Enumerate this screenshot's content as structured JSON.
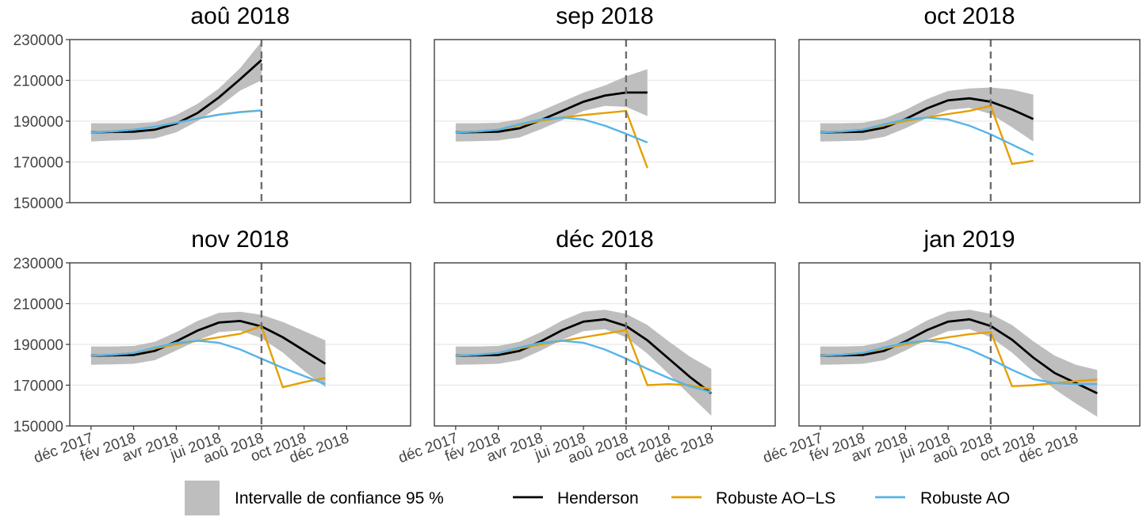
{
  "chart_data": {
    "type": "line",
    "legend_position": "bottom",
    "legend": [
      {
        "key": "ci",
        "label": "Intervalle de confiance 95 %",
        "color": "#bebebe"
      },
      {
        "key": "henderson",
        "label": "Henderson",
        "color": "#000000"
      },
      {
        "key": "ao_ls",
        "label": "Robuste AO−LS",
        "color": "#E69F00"
      },
      {
        "key": "ao",
        "label": "Robuste AO",
        "color": "#56B4E9"
      }
    ],
    "ylim": [
      150000,
      230000
    ],
    "y_ticks": [
      150000,
      170000,
      190000,
      210000,
      230000
    ],
    "y_tick_labels": [
      "150000",
      "170000",
      "190000",
      "210000",
      "230000"
    ],
    "x_ticks": [
      "2017-12",
      "2018-02",
      "2018-04",
      "2018-06",
      "2018-08",
      "2018-10",
      "2018-12"
    ],
    "x_tick_labels": [
      "déc 2017",
      "fév 2018",
      "avr 2018",
      "jui 2018",
      "aoû 2018",
      "oct 2018",
      "déc 2018"
    ],
    "x_range": [
      "2017-11",
      "2019-03"
    ],
    "grid": true,
    "panels": [
      {
        "title": "aoû 2018",
        "vline": "2018-08",
        "henderson": {
          "x": [
            "2017-12",
            "2018-01",
            "2018-02",
            "2018-03",
            "2018-04",
            "2018-05",
            "2018-06",
            "2018-07",
            "2018-08"
          ],
          "y": [
            184500,
            184700,
            184800,
            185800,
            188800,
            194000,
            201600,
            210600,
            220000
          ]
        },
        "ci_lower": [
          180000,
          180500,
          180800,
          181500,
          184500,
          190000,
          197000,
          205000,
          210000
        ],
        "ci_upper": [
          189000,
          189000,
          189000,
          189500,
          193000,
          198500,
          206000,
          216000,
          229000
        ],
        "ao_ls": {
          "x": [
            "2017-12",
            "2018-01",
            "2018-02",
            "2018-03",
            "2018-04",
            "2018-05",
            "2018-06",
            "2018-07",
            "2018-08"
          ],
          "y": [
            184500,
            184900,
            185800,
            187300,
            189200,
            191300,
            193200,
            194500,
            195300
          ]
        },
        "ao": {
          "x": [
            "2017-12",
            "2018-01",
            "2018-02",
            "2018-03",
            "2018-04",
            "2018-05",
            "2018-06",
            "2018-07",
            "2018-08"
          ],
          "y": [
            184500,
            184900,
            185800,
            187300,
            189200,
            191300,
            193200,
            194400,
            195200
          ]
        }
      },
      {
        "title": "sep 2018",
        "vline": "2018-08",
        "henderson": {
          "x": [
            "2017-12",
            "2018-01",
            "2018-02",
            "2018-03",
            "2018-04",
            "2018-05",
            "2018-06",
            "2018-07",
            "2018-08",
            "2018-09"
          ],
          "y": [
            184500,
            184600,
            184800,
            186500,
            190500,
            195000,
            199500,
            202500,
            204000,
            204000
          ]
        },
        "ci_lower": [
          180000,
          180200,
          180500,
          182000,
          186000,
          190500,
          195000,
          197500,
          197000,
          192500
        ],
        "ci_upper": [
          189000,
          189000,
          189200,
          191000,
          195000,
          199500,
          204000,
          207500,
          212000,
          215500
        ],
        "ao_ls": {
          "x": [
            "2017-12",
            "2018-01",
            "2018-02",
            "2018-03",
            "2018-04",
            "2018-05",
            "2018-06",
            "2018-07",
            "2018-08",
            "2018-09"
          ],
          "y": [
            184500,
            184900,
            185800,
            188000,
            190200,
            191700,
            193000,
            194000,
            195000,
            167000
          ]
        },
        "ao": {
          "x": [
            "2017-12",
            "2018-01",
            "2018-02",
            "2018-03",
            "2018-04",
            "2018-05",
            "2018-06",
            "2018-07",
            "2018-08",
            "2018-09"
          ],
          "y": [
            184500,
            184900,
            185800,
            188500,
            190800,
            191800,
            190800,
            187800,
            183800,
            179500
          ]
        }
      },
      {
        "title": "oct 2018",
        "vline": "2018-08",
        "henderson": {
          "x": [
            "2017-12",
            "2018-01",
            "2018-02",
            "2018-03",
            "2018-04",
            "2018-05",
            "2018-06",
            "2018-07",
            "2018-08",
            "2018-09",
            "2018-10"
          ],
          "y": [
            184500,
            184600,
            184800,
            186800,
            191000,
            196200,
            200200,
            201200,
            199500,
            195700,
            191000
          ]
        },
        "ci_lower": [
          180000,
          180200,
          180500,
          182300,
          186500,
          191500,
          195500,
          196500,
          193500,
          187000,
          180000
        ],
        "ci_upper": [
          189000,
          189000,
          189200,
          191300,
          195500,
          200800,
          204800,
          206000,
          206500,
          205500,
          203000
        ],
        "ao_ls": {
          "x": [
            "2017-12",
            "2018-01",
            "2018-02",
            "2018-03",
            "2018-04",
            "2018-05",
            "2018-06",
            "2018-07",
            "2018-08",
            "2018-09",
            "2018-10"
          ],
          "y": [
            184500,
            184900,
            185800,
            188000,
            190000,
            191800,
            193500,
            195000,
            197500,
            169000,
            170500
          ]
        },
        "ao": {
          "x": [
            "2017-12",
            "2018-01",
            "2018-02",
            "2018-03",
            "2018-04",
            "2018-05",
            "2018-06",
            "2018-07",
            "2018-08",
            "2018-09",
            "2018-10"
          ],
          "y": [
            184500,
            184900,
            185800,
            188500,
            190800,
            191800,
            190800,
            187800,
            183500,
            178500,
            173500
          ]
        }
      },
      {
        "title": "nov 2018",
        "vline": "2018-08",
        "henderson": {
          "x": [
            "2017-12",
            "2018-01",
            "2018-02",
            "2018-03",
            "2018-04",
            "2018-05",
            "2018-06",
            "2018-07",
            "2018-08",
            "2018-09",
            "2018-10",
            "2018-11"
          ],
          "y": [
            184500,
            184600,
            184800,
            186800,
            191500,
            196800,
            200700,
            201500,
            198800,
            193500,
            187000,
            180500
          ]
        },
        "ci_lower": [
          180000,
          180200,
          180500,
          182300,
          187000,
          192000,
          196000,
          196800,
          193000,
          186000,
          177000,
          169000
        ],
        "ci_upper": [
          189000,
          189000,
          189200,
          191300,
          196000,
          201500,
          205500,
          206000,
          204500,
          201000,
          196500,
          192000
        ],
        "ao_ls": {
          "x": [
            "2017-12",
            "2018-01",
            "2018-02",
            "2018-03",
            "2018-04",
            "2018-05",
            "2018-06",
            "2018-07",
            "2018-08",
            "2018-09",
            "2018-10",
            "2018-11"
          ],
          "y": [
            184500,
            184900,
            185800,
            188000,
            190000,
            191800,
            193500,
            195200,
            199000,
            169000,
            171500,
            173500
          ]
        },
        "ao": {
          "x": [
            "2017-12",
            "2018-01",
            "2018-02",
            "2018-03",
            "2018-04",
            "2018-05",
            "2018-06",
            "2018-07",
            "2018-08",
            "2018-09",
            "2018-10",
            "2018-11"
          ],
          "y": [
            184500,
            184900,
            185800,
            188500,
            190800,
            191800,
            190800,
            187500,
            183000,
            178500,
            174500,
            170500
          ]
        }
      },
      {
        "title": "déc 2018",
        "vline": "2018-08",
        "henderson": {
          "x": [
            "2017-12",
            "2018-01",
            "2018-02",
            "2018-03",
            "2018-04",
            "2018-05",
            "2018-06",
            "2018-07",
            "2018-08",
            "2018-09",
            "2018-10",
            "2018-11",
            "2018-12"
          ],
          "y": [
            184500,
            184600,
            184800,
            186800,
            191500,
            197000,
            201200,
            202300,
            199000,
            192000,
            183000,
            174000,
            166000
          ]
        },
        "ci_lower": [
          180000,
          180200,
          180500,
          182300,
          187000,
          192300,
          196500,
          197500,
          193500,
          185500,
          175500,
          165000,
          155000
        ],
        "ci_upper": [
          189000,
          189000,
          189200,
          191300,
          196000,
          201700,
          206000,
          207000,
          205000,
          199500,
          191500,
          184000,
          178000
        ],
        "ao_ls": {
          "x": [
            "2017-12",
            "2018-01",
            "2018-02",
            "2018-03",
            "2018-04",
            "2018-05",
            "2018-06",
            "2018-07",
            "2018-08",
            "2018-09",
            "2018-10",
            "2018-11",
            "2018-12"
          ],
          "y": [
            184500,
            184900,
            185800,
            188000,
            190000,
            191800,
            193500,
            195200,
            197000,
            170000,
            170500,
            170000,
            168000
          ]
        },
        "ao": {
          "x": [
            "2017-12",
            "2018-01",
            "2018-02",
            "2018-03",
            "2018-04",
            "2018-05",
            "2018-06",
            "2018-07",
            "2018-08",
            "2018-09",
            "2018-10",
            "2018-11",
            "2018-12"
          ],
          "y": [
            184500,
            184900,
            185800,
            188500,
            190800,
            191800,
            190800,
            187500,
            183000,
            178000,
            173500,
            169500,
            166500
          ]
        }
      },
      {
        "title": "jan 2019",
        "vline": "2018-08",
        "henderson": {
          "x": [
            "2017-12",
            "2018-01",
            "2018-02",
            "2018-03",
            "2018-04",
            "2018-05",
            "2018-06",
            "2018-07",
            "2018-08",
            "2018-09",
            "2018-10",
            "2018-11",
            "2018-12",
            "2019-01"
          ],
          "y": [
            184500,
            184600,
            184800,
            186800,
            191500,
            197000,
            201200,
            202300,
            199000,
            192300,
            183500,
            176000,
            171000,
            166000
          ]
        },
        "ci_lower": [
          180000,
          180200,
          180500,
          182300,
          187000,
          192300,
          196500,
          197500,
          193500,
          186000,
          176500,
          168000,
          161000,
          154500
        ],
        "ci_upper": [
          189000,
          189000,
          189200,
          191300,
          196000,
          201700,
          206000,
          207000,
          205000,
          199500,
          191500,
          184500,
          180000,
          177500
        ],
        "ao_ls": {
          "x": [
            "2017-12",
            "2018-01",
            "2018-02",
            "2018-03",
            "2018-04",
            "2018-05",
            "2018-06",
            "2018-07",
            "2018-08",
            "2018-09",
            "2018-10",
            "2018-11",
            "2018-12",
            "2019-01"
          ],
          "y": [
            184500,
            184900,
            185800,
            188000,
            190000,
            191800,
            193500,
            195000,
            196000,
            169500,
            170000,
            171000,
            172000,
            172800
          ]
        },
        "ao": {
          "x": [
            "2017-12",
            "2018-01",
            "2018-02",
            "2018-03",
            "2018-04",
            "2018-05",
            "2018-06",
            "2018-07",
            "2018-08",
            "2018-09",
            "2018-10",
            "2018-11",
            "2018-12",
            "2019-01"
          ],
          "y": [
            184500,
            184900,
            185800,
            188500,
            190800,
            191800,
            190800,
            187500,
            182800,
            177500,
            173000,
            171000,
            170500,
            170500
          ]
        }
      }
    ]
  }
}
